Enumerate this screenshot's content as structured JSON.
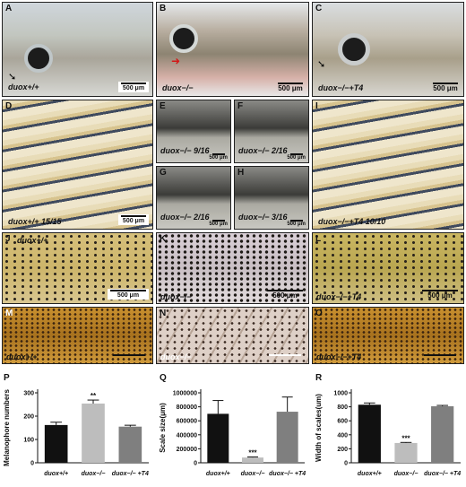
{
  "panels": {
    "A": {
      "label": "A",
      "genotype": "duox+/+",
      "scale": "500 μm"
    },
    "B": {
      "label": "B",
      "genotype": "duox−/−",
      "scale": "500 μm"
    },
    "C": {
      "label": "C",
      "genotype": "duox−/−+T4",
      "scale": "500 μm"
    },
    "D": {
      "label": "D",
      "genotype": "duox+/+  15/15",
      "scale": "500 μm"
    },
    "E": {
      "label": "E",
      "genotype": "duox−/−  9/16",
      "scale": "500 μm"
    },
    "F": {
      "label": "F",
      "genotype": "duox−/−  2/16",
      "scale": "500 μm"
    },
    "G": {
      "label": "G",
      "genotype": "duox−/−  2/16",
      "scale": "500 μm"
    },
    "H": {
      "label": "H",
      "genotype": "duox−/−  3/16",
      "scale": "500 μm"
    },
    "I": {
      "label": "I",
      "genotype": "duox−/−+T4  10/10",
      "scale": "500 μm"
    },
    "J": {
      "label": "J",
      "genotype": "duox+/+",
      "scale": "500 μm"
    },
    "K": {
      "label": "K",
      "genotype": "duox−/−",
      "scale": "500 μm"
    },
    "L": {
      "label": "L",
      "genotype": "duox−/−+T4",
      "scale": "500 μm"
    },
    "M": {
      "label": "M",
      "genotype": "duox+/+"
    },
    "N": {
      "label": "N",
      "genotype": "duox−/−"
    },
    "O": {
      "label": "O",
      "genotype": "duox−/−+T4"
    }
  },
  "chart_data": [
    {
      "label": "P",
      "type": "bar",
      "ylabel": "Melanophore numbers",
      "ylim": [
        0,
        300
      ],
      "yticks": [
        "0",
        "100",
        "200",
        "300"
      ],
      "categories": [
        "duox+/+",
        "duox−/−",
        "duox−/− +T4"
      ],
      "values": [
        162,
        254,
        155
      ],
      "errors": [
        12,
        15,
        6
      ],
      "significance": [
        "",
        "**",
        ""
      ],
      "colors": [
        "#111111",
        "#bdbdbd",
        "#7f7f7f"
      ]
    },
    {
      "label": "Q",
      "type": "bar",
      "ylabel": "Scale size(μm)",
      "ylim": [
        0,
        1000000
      ],
      "yticks": [
        "0",
        "200000",
        "400000",
        "600000",
        "800000",
        "1000000"
      ],
      "categories": [
        "duox+/+",
        "duox−/−",
        "duox−/− +T4"
      ],
      "values": [
        700000,
        75000,
        730000
      ],
      "errors": [
        190000,
        8000,
        210000
      ],
      "significance": [
        "",
        "***",
        ""
      ],
      "colors": [
        "#111111",
        "#bdbdbd",
        "#7f7f7f"
      ]
    },
    {
      "label": "R",
      "type": "bar",
      "ylabel": "Width of scales(um)",
      "ylim": [
        0,
        1000
      ],
      "yticks": [
        "0",
        "200",
        "400",
        "600",
        "800",
        "1000"
      ],
      "categories": [
        "duox+/+",
        "duox−/−",
        "duox−/− +T4"
      ],
      "values": [
        830,
        283,
        808
      ],
      "errors": [
        25,
        8,
        12
      ],
      "significance": [
        "",
        "***",
        ""
      ],
      "colors": [
        "#111111",
        "#bdbdbd",
        "#7f7f7f"
      ]
    }
  ]
}
